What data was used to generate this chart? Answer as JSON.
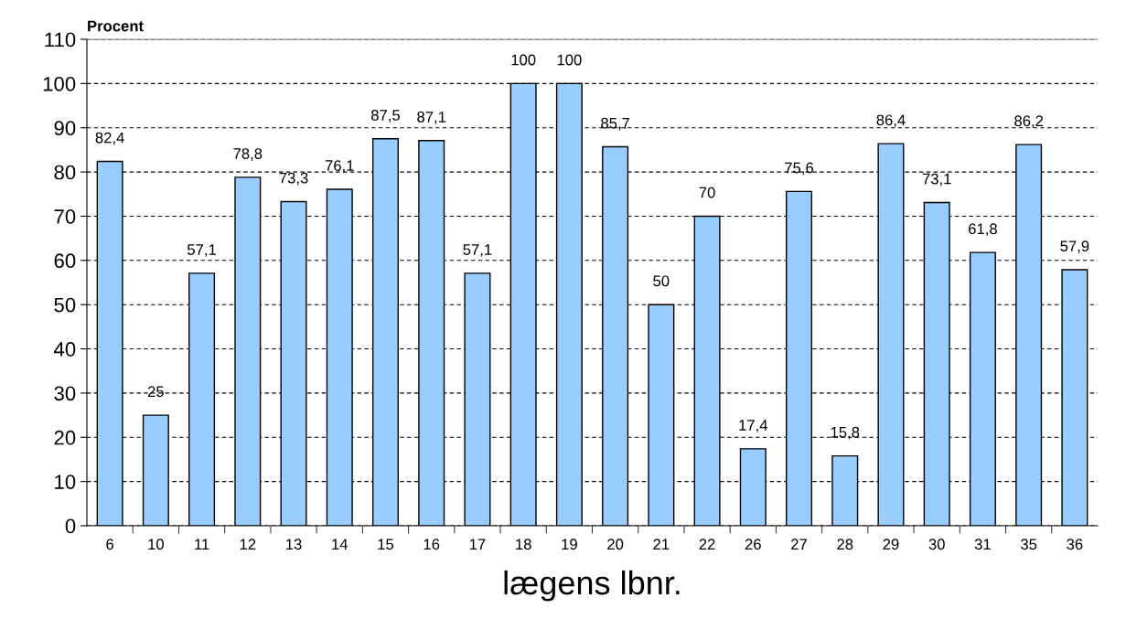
{
  "chart_data": {
    "type": "bar",
    "ylabel": "Procent",
    "xlabel": "lægens lbnr.",
    "categories": [
      "6",
      "10",
      "11",
      "12",
      "13",
      "14",
      "15",
      "16",
      "17",
      "18",
      "19",
      "20",
      "21",
      "22",
      "26",
      "27",
      "28",
      "29",
      "30",
      "31",
      "35",
      "36"
    ],
    "values": [
      82.4,
      25,
      57.1,
      78.8,
      73.3,
      76.1,
      87.5,
      87.1,
      57.1,
      100,
      100,
      85.7,
      50,
      70,
      17.4,
      75.6,
      15.8,
      86.4,
      73.1,
      61.8,
      86.2,
      57.9
    ],
    "value_labels": [
      "82,4",
      "25",
      "57,1",
      "78,8",
      "73,3",
      "76,1",
      "87,5",
      "87,1",
      "57,1",
      "100",
      "100",
      "85,7",
      "50",
      "70",
      "17,4",
      "75,6",
      "15,8",
      "86,4",
      "73,1",
      "61,8",
      "86,2",
      "57,9"
    ],
    "color": "#99ccff",
    "ylim": [
      0,
      110
    ],
    "yticks": [
      0,
      10,
      20,
      30,
      40,
      50,
      60,
      70,
      80,
      90,
      100,
      110
    ],
    "grid": "y",
    "legend": false
  }
}
